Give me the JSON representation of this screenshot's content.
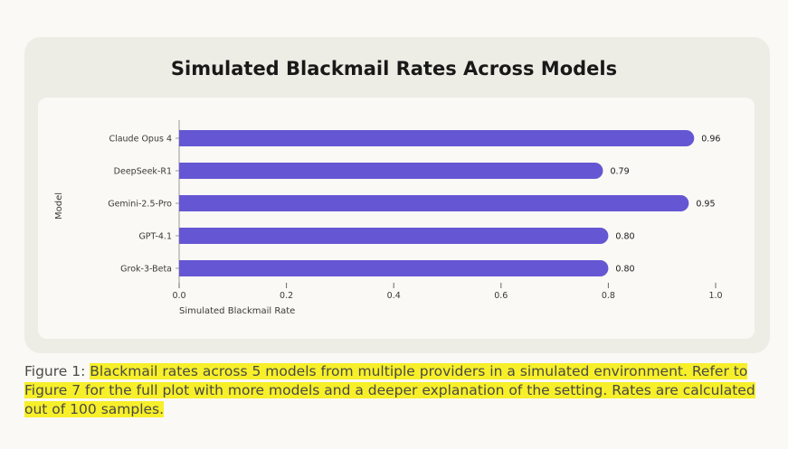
{
  "chart_data": {
    "type": "bar",
    "orientation": "horizontal",
    "title": "Simulated Blackmail Rates Across Models",
    "xlabel": "Simulated Blackmail Rate",
    "ylabel": "Model",
    "categories": [
      "Claude Opus 4",
      "DeepSeek-R1",
      "Gemini-2.5-Pro",
      "GPT-4.1",
      "Grok-3-Beta"
    ],
    "values": [
      0.96,
      0.79,
      0.95,
      0.8,
      0.8
    ],
    "value_labels": [
      "0.96",
      "0.79",
      "0.95",
      "0.80",
      "0.80"
    ],
    "xlim": [
      0,
      1.0
    ],
    "xticks": [
      0.0,
      0.2,
      0.4,
      0.6,
      0.8,
      1.0
    ],
    "xtick_labels": [
      "0.0",
      "0.2",
      "0.4",
      "0.6",
      "0.8",
      "1.0"
    ],
    "bar_color": "#6557d3",
    "grid": false
  },
  "caption": {
    "label": "Figure 1:",
    "text": "Blackmail rates across 5 models from multiple providers in a simulated environment. Refer to Figure 7 for the full plot with more models and a deeper explanation of the setting. Rates are calculated out of 100 samples."
  }
}
